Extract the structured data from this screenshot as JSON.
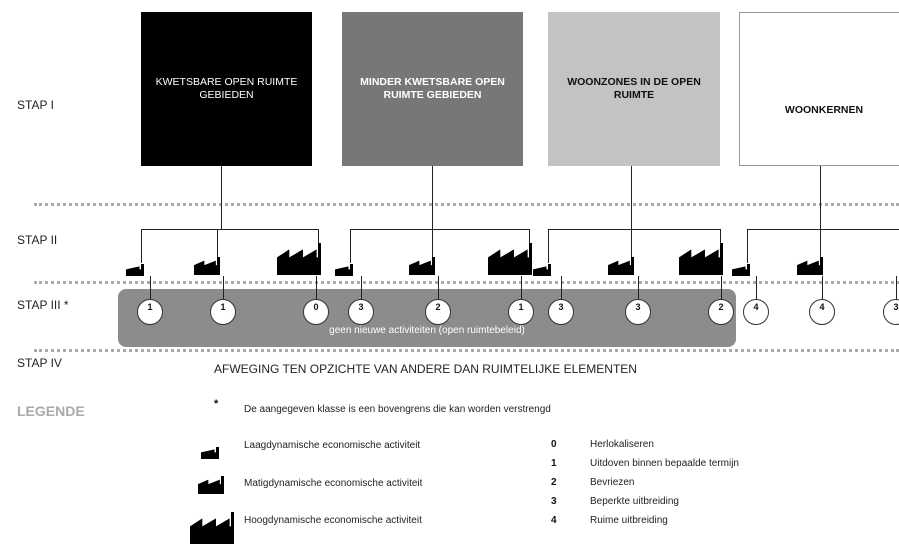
{
  "stages": {
    "stap1": "STAP I",
    "stap2": "STAP II",
    "stap3": "STAP III *",
    "stap4": "STAP IV"
  },
  "boxes": [
    {
      "label": "KWETSBARE OPEN RUIMTE GEBIEDEN",
      "fill": "#000000",
      "text_color": "#ffffff"
    },
    {
      "label": "MINDER KWETSBARE OPEN RUIMTE GEBIEDEN",
      "fill": "#777777",
      "text_color": "#ffffff"
    },
    {
      "label": "WOONZONES IN DE OPEN RUIMTE",
      "fill": "#c3c3c3",
      "text_color": "#111111"
    },
    {
      "label": "WOONKERNEN",
      "fill": "#ffffff",
      "text_color": "#111111"
    }
  ],
  "circle_values": [
    "1",
    "1",
    "0",
    "3",
    "2",
    "1",
    "3",
    "3",
    "2",
    "4",
    "4",
    "3"
  ],
  "band_text": "geen nieuwe activiteiten (open ruimtebeleid)",
  "stap4_text": "AFWEGING TEN OPZICHTE VAN ANDERE DAN RUIMTELIJKE ELEMENTEN",
  "legend": {
    "title": "LEGENDE",
    "asterisk": "*",
    "asterisk_note": "De aangegeven klasse is een bovengrens die kan worden verstrengd",
    "factories": [
      "Laagdynamische economische activiteit",
      "Matigdynamische economische activiteit",
      "Hoogdynamische economische activiteit"
    ],
    "codes": [
      {
        "num": "0",
        "label": "Herlokaliseren"
      },
      {
        "num": "1",
        "label": "Uitdoven binnen bepaalde termijn"
      },
      {
        "num": "2",
        "label": "Bevriezen"
      },
      {
        "num": "3",
        "label": "Beperkte uitbreiding"
      },
      {
        "num": "4",
        "label": "Ruime uitbreiding"
      }
    ]
  },
  "colors": {
    "band": "#8c8c8c",
    "dots": "#aaaaaa",
    "line": "#222222"
  }
}
